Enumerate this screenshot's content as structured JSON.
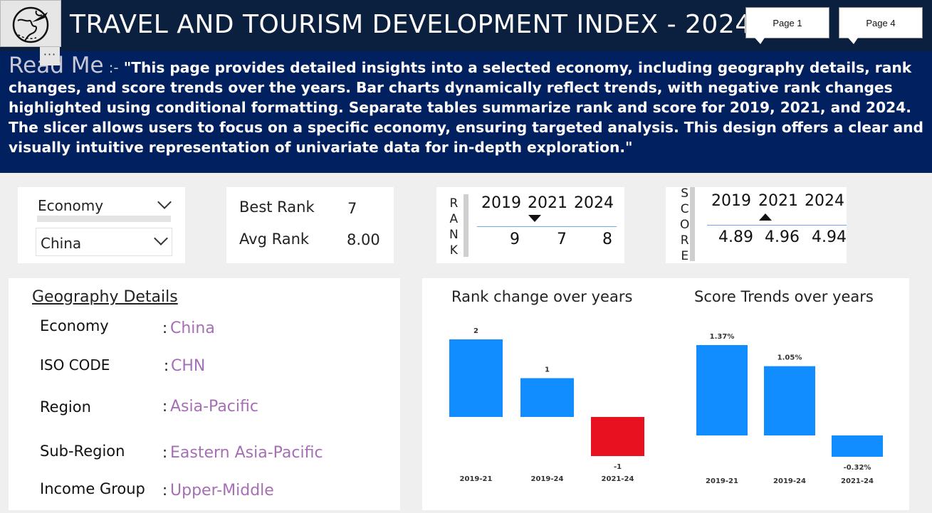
{
  "header": {
    "title": "TRAVEL AND TOURISM DEVELOPMENT INDEX - 2024",
    "page_buttons": [
      "Page 1",
      "Page 4"
    ],
    "more_label": "···"
  },
  "readme": {
    "title": "Read Me",
    "separator": ":-",
    "text": "\"This page provides detailed insights into a selected economy, including geography details, rank changes, and score trends over the years. Bar charts dynamically reflect trends, with negative rank changes highlighted using conditional formatting. Separate tables summarize rank and score for 2019, 2021, and 2024. The slicer allows users to focus on a specific economy, ensuring targeted analysis. This design offers a clear and visually intuitive representation of univariate data for in-depth exploration.\""
  },
  "slicer": {
    "label": "Economy",
    "value": "China"
  },
  "kpi": {
    "best_rank_label": "Best Rank",
    "best_rank_value": "7",
    "avg_rank_label": "Avg Rank",
    "avg_rank_value": "8.00"
  },
  "rank_table": {
    "side_label": [
      "R",
      "A",
      "N",
      "K"
    ],
    "years": [
      "2019",
      "2021",
      "2024"
    ],
    "values": [
      "9",
      "7",
      "8"
    ]
  },
  "score_table": {
    "side_label": [
      "S",
      "C",
      "O",
      "R",
      "E"
    ],
    "years": [
      "2019",
      "2021",
      "2024"
    ],
    "values": [
      "4.89",
      "4.96",
      "4.94"
    ]
  },
  "geography": {
    "title": "Geography Details",
    "colon": ":",
    "rows": [
      {
        "label": "Economy",
        "value": "China"
      },
      {
        "label": "ISO CODE",
        "value": "CHN"
      },
      {
        "label": "Region",
        "value": "Asia-Pacific"
      },
      {
        "label": "Sub-Region",
        "value": "Eastern Asia-Pacific"
      },
      {
        "label": "Income Group",
        "value": "Upper-Middle"
      }
    ]
  },
  "chart_data": [
    {
      "type": "bar",
      "title": "Rank change over years",
      "categories": [
        "2019-21",
        "2019-24",
        "2021-24"
      ],
      "values": [
        2,
        1,
        -1
      ],
      "data_labels": [
        "2",
        "1",
        "-1"
      ],
      "colors": [
        "#118dff",
        "#118dff",
        "#e8111f"
      ],
      "ylim": [
        -1,
        2
      ]
    },
    {
      "type": "bar",
      "title": "Score Trends over years",
      "categories": [
        "2019-21",
        "2019-24",
        "2021-24"
      ],
      "values": [
        1.37,
        1.05,
        -0.32
      ],
      "data_labels": [
        "1.37%",
        "1.05%",
        "-0.32%"
      ],
      "colors": [
        "#118dff",
        "#118dff",
        "#118dff"
      ],
      "ylim": [
        -0.32,
        1.37
      ]
    }
  ],
  "colors": {
    "header_bg": "#0b1f3f",
    "readme_bg": "#002060",
    "bar_positive": "#118dff",
    "bar_negative": "#e8111f",
    "geo_value": "#a66fb5"
  }
}
